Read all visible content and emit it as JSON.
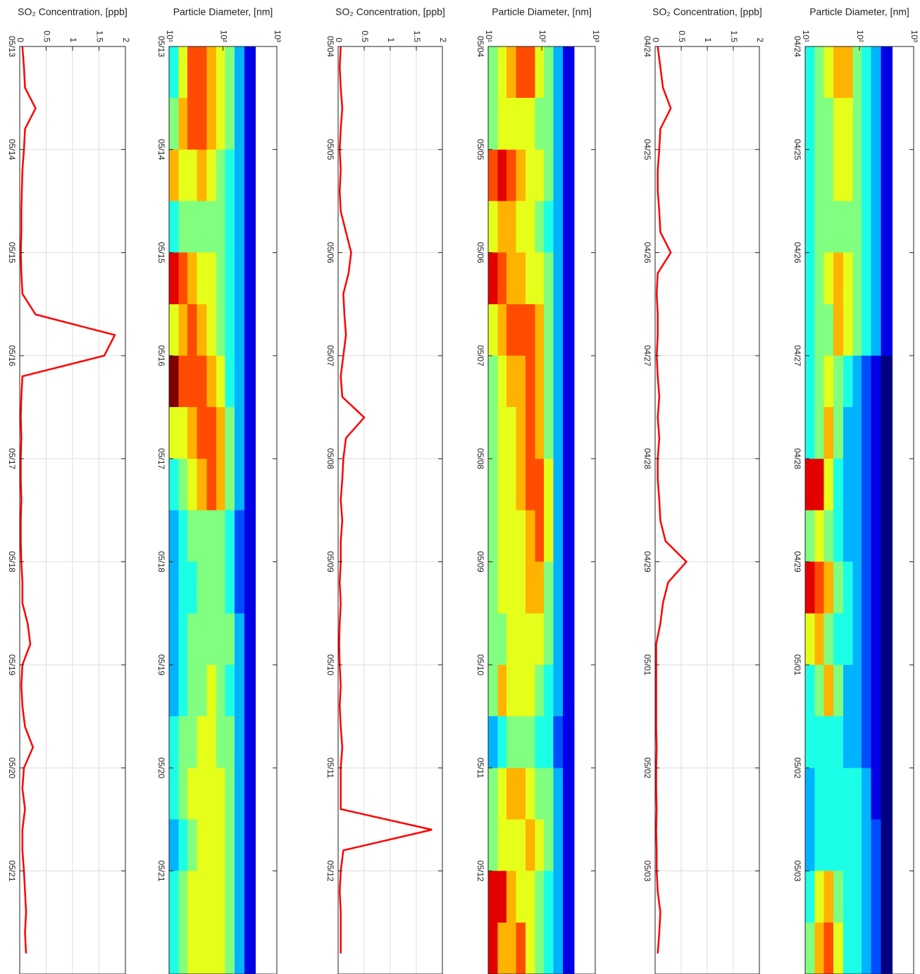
{
  "chart_data": [
    {
      "type": "line",
      "title": "SO₂ Concentration, [ppb]",
      "color": "#ff0000",
      "grid": true,
      "xlim": [
        0,
        9
      ],
      "xticks": [
        {
          "value": 0,
          "label": "05/13"
        },
        {
          "value": 1,
          "label": "05/14"
        },
        {
          "value": 2,
          "label": "05/15"
        },
        {
          "value": 3,
          "label": "05/16"
        },
        {
          "value": 4,
          "label": "05/17"
        },
        {
          "value": 5,
          "label": "05/18"
        },
        {
          "value": 6,
          "label": "05/19"
        },
        {
          "value": 7,
          "label": "05/20"
        },
        {
          "value": 8,
          "label": "05/21"
        }
      ],
      "ylim": [
        0,
        2
      ],
      "yticks": [
        0,
        0.5,
        1,
        1.5,
        2
      ],
      "x": [
        0,
        0.2,
        0.4,
        0.6,
        0.8,
        1,
        1.2,
        1.4,
        1.6,
        1.8,
        2,
        2.2,
        2.4,
        2.6,
        2.8,
        3,
        3.2,
        3.4,
        3.6,
        3.8,
        4,
        4.2,
        4.4,
        4.6,
        4.8,
        5,
        5.2,
        5.4,
        5.6,
        5.8,
        6,
        6.2,
        6.4,
        6.6,
        6.8,
        7,
        7.2,
        7.4,
        7.6,
        7.8,
        8,
        8.2,
        8.4,
        8.6,
        8.8
      ],
      "values": [
        0.05,
        0.08,
        0.1,
        0.3,
        0.1,
        0.08,
        0.05,
        0.04,
        0.03,
        0.03,
        0.02,
        0.03,
        0.05,
        0.3,
        1.8,
        1.6,
        0.05,
        0.03,
        0.02,
        0.03,
        0.02,
        0.02,
        0.03,
        0.02,
        0.02,
        0.03,
        0.05,
        0.05,
        0.15,
        0.2,
        0.05,
        0.03,
        0.05,
        0.1,
        0.25,
        0.08,
        0.05,
        0.1,
        0.05,
        0.05,
        0.08,
        0.1,
        0.12,
        0.1,
        0.12
      ]
    },
    {
      "type": "heatmap",
      "title": "Particle Diameter, [nm]",
      "log": true,
      "zlim": [
        0,
        10
      ],
      "xlim": [
        0,
        9
      ],
      "xticks": [
        0,
        1,
        2,
        3,
        4,
        5,
        6,
        7,
        8
      ],
      "ylim": [
        10,
        1000
      ],
      "yticks": [
        {
          "value": 10,
          "label": "10¹"
        },
        {
          "value": 100,
          "label": "10²"
        },
        {
          "value": 1000,
          "label": "10³"
        }
      ],
      "x": [
        0,
        0.5,
        1,
        1.5,
        2,
        2.5,
        3,
        3.5,
        4,
        4.5,
        5,
        5.5,
        6,
        6.5,
        7,
        7.5,
        8,
        8.5,
        9
      ],
      "bins": [
        10,
        15,
        22,
        33,
        50,
        75,
        110,
        165,
        250,
        400
      ],
      "z": [
        [
          4,
          6,
          8,
          8,
          7,
          6,
          5,
          3,
          1
        ],
        [
          5,
          7,
          8,
          8,
          7,
          6,
          5,
          3,
          1
        ],
        [
          7,
          6,
          6,
          7,
          6,
          5,
          4,
          3,
          1
        ],
        [
          4,
          5,
          5,
          5,
          5,
          5,
          4,
          3,
          1
        ],
        [
          9,
          8,
          7,
          6,
          6,
          5,
          4,
          3,
          1
        ],
        [
          6,
          7,
          8,
          7,
          6,
          5,
          4,
          3,
          1
        ],
        [
          10,
          8,
          8,
          8,
          7,
          6,
          4,
          3,
          1
        ],
        [
          6,
          6,
          7,
          8,
          8,
          7,
          5,
          3,
          1
        ],
        [
          4,
          5,
          6,
          7,
          8,
          7,
          5,
          3,
          1
        ],
        [
          3,
          4,
          5,
          5,
          5,
          5,
          4,
          2,
          1
        ],
        [
          3,
          4,
          4,
          5,
          5,
          5,
          4,
          2,
          1
        ],
        [
          3,
          4,
          5,
          5,
          5,
          5,
          5,
          3,
          1
        ],
        [
          3,
          4,
          5,
          5,
          6,
          5,
          4,
          3,
          1
        ],
        [
          4,
          5,
          5,
          6,
          6,
          5,
          5,
          3,
          1
        ],
        [
          4,
          5,
          6,
          6,
          6,
          6,
          5,
          3,
          1
        ],
        [
          3,
          4,
          5,
          6,
          6,
          6,
          5,
          3,
          1
        ],
        [
          4,
          5,
          6,
          6,
          6,
          6,
          5,
          3,
          1
        ],
        [
          4,
          5,
          6,
          6,
          6,
          6,
          5,
          3,
          1
        ]
      ]
    },
    {
      "type": "line",
      "title": "SO₂ Concentration, [ppb]",
      "color": "#ff0000",
      "grid": true,
      "xlim": [
        0,
        9
      ],
      "xticks": [
        {
          "value": 0,
          "label": "05/04"
        },
        {
          "value": 1,
          "label": "05/05"
        },
        {
          "value": 2,
          "label": "05/06"
        },
        {
          "value": 3,
          "label": "05/07"
        },
        {
          "value": 4,
          "label": "05/08"
        },
        {
          "value": 5,
          "label": "05/09"
        },
        {
          "value": 6,
          "label": "05/10"
        },
        {
          "value": 7,
          "label": "05/11"
        },
        {
          "value": 8,
          "label": "05/12"
        }
      ],
      "ylim": [
        0,
        2
      ],
      "yticks": [
        0,
        0.5,
        1,
        1.5,
        2
      ],
      "x": [
        0,
        0.2,
        0.4,
        0.6,
        0.8,
        1,
        1.2,
        1.4,
        1.6,
        1.8,
        2,
        2.2,
        2.4,
        2.6,
        2.8,
        3,
        3.2,
        3.4,
        3.6,
        3.8,
        4,
        4.2,
        4.4,
        4.6,
        4.8,
        5,
        5.2,
        5.4,
        5.6,
        5.8,
        6,
        6.2,
        6.4,
        6.6,
        6.8,
        7,
        7.2,
        7.4,
        7.6,
        7.8,
        8,
        8.2,
        8.4,
        8.6,
        8.8
      ],
      "values": [
        0.05,
        0.03,
        0.05,
        0.08,
        0.05,
        0.03,
        0.05,
        0.03,
        0.05,
        0.15,
        0.25,
        0.2,
        0.1,
        0.12,
        0.15,
        0.1,
        0.05,
        0.08,
        0.5,
        0.15,
        0.1,
        0.08,
        0.05,
        0.08,
        0.05,
        0.05,
        0.03,
        0.05,
        0.03,
        0.02,
        0.03,
        0.05,
        0.03,
        0.05,
        0.08,
        0.05,
        0.05,
        0.05,
        1.8,
        0.1,
        0.05,
        0.03,
        0.05,
        0.05,
        0.05
      ]
    },
    {
      "type": "heatmap",
      "title": "Particle Diameter, [nm]",
      "log": true,
      "zlim": [
        0,
        10
      ],
      "xlim": [
        0,
        9
      ],
      "xticks": [
        0,
        1,
        2,
        3,
        4,
        5,
        6,
        7,
        8
      ],
      "ylim": [
        10,
        1000
      ],
      "yticks": [
        {
          "value": 10,
          "label": "10¹"
        },
        {
          "value": 100,
          "label": "10²"
        },
        {
          "value": 1000,
          "label": "10³"
        }
      ],
      "x": [
        0,
        0.5,
        1,
        1.5,
        2,
        2.5,
        3,
        3.5,
        4,
        4.5,
        5,
        5.5,
        6,
        6.5,
        7,
        7.5,
        8,
        8.5,
        9
      ],
      "bins": [
        10,
        15,
        22,
        33,
        50,
        75,
        110,
        165,
        250,
        400
      ],
      "z": [
        [
          5,
          6,
          7,
          8,
          8,
          6,
          5,
          3,
          1
        ],
        [
          5,
          6,
          6,
          6,
          6,
          5,
          5,
          3,
          1
        ],
        [
          8,
          9,
          8,
          7,
          6,
          6,
          5,
          3,
          1
        ],
        [
          6,
          7,
          7,
          6,
          6,
          5,
          4,
          3,
          1
        ],
        [
          9,
          8,
          7,
          7,
          6,
          6,
          5,
          3,
          1
        ],
        [
          6,
          7,
          8,
          8,
          8,
          7,
          5,
          3,
          1
        ],
        [
          5,
          6,
          7,
          7,
          8,
          7,
          5,
          3,
          1
        ],
        [
          5,
          6,
          6,
          7,
          8,
          7,
          5,
          3,
          1
        ],
        [
          5,
          6,
          6,
          7,
          8,
          8,
          6,
          3,
          1
        ],
        [
          5,
          6,
          6,
          6,
          7,
          8,
          6,
          3,
          1
        ],
        [
          5,
          6,
          6,
          6,
          7,
          7,
          5,
          3,
          1
        ],
        [
          5,
          5,
          6,
          6,
          6,
          6,
          5,
          3,
          1
        ],
        [
          5,
          7,
          6,
          6,
          6,
          5,
          4,
          3,
          1
        ],
        [
          3,
          4,
          5,
          5,
          5,
          4,
          4,
          2,
          1
        ],
        [
          5,
          6,
          7,
          7,
          6,
          5,
          5,
          3,
          1
        ],
        [
          5,
          6,
          6,
          6,
          7,
          6,
          5,
          3,
          1
        ],
        [
          9,
          9,
          7,
          6,
          6,
          5,
          4,
          3,
          1
        ],
        [
          9,
          7,
          7,
          8,
          6,
          5,
          4,
          3,
          1
        ]
      ]
    },
    {
      "type": "line",
      "title": "SO₂ Concentration, [ppb]",
      "color": "#ff0000",
      "grid": true,
      "xlim": [
        0,
        9
      ],
      "xticks": [
        {
          "value": 0,
          "label": "04/24"
        },
        {
          "value": 1,
          "label": "04/25"
        },
        {
          "value": 2,
          "label": "04/26"
        },
        {
          "value": 3,
          "label": "04/27"
        },
        {
          "value": 4,
          "label": "04/28"
        },
        {
          "value": 5,
          "label": "04/29"
        },
        {
          "value": 6,
          "label": "05/01"
        },
        {
          "value": 7,
          "label": "05/02"
        },
        {
          "value": 8,
          "label": "05/03"
        }
      ],
      "ylim": [
        0,
        2
      ],
      "yticks": [
        0,
        0.5,
        1,
        1.5,
        2
      ],
      "x": [
        0,
        0.2,
        0.4,
        0.6,
        0.8,
        1,
        1.2,
        1.4,
        1.6,
        1.8,
        2,
        2.2,
        2.4,
        2.6,
        2.8,
        3,
        3.2,
        3.4,
        3.6,
        3.8,
        4,
        4.2,
        4.4,
        4.6,
        4.8,
        5,
        5.2,
        5.4,
        5.6,
        5.8,
        6,
        6.2,
        6.4,
        6.6,
        6.8,
        7,
        7.2,
        7.4,
        7.6,
        7.8,
        8,
        8.2,
        8.4,
        8.6,
        8.8
      ],
      "values": [
        0.05,
        0.1,
        0.15,
        0.3,
        0.1,
        0.08,
        0.05,
        0.05,
        0.08,
        0.1,
        0.3,
        0.05,
        0.03,
        0.05,
        0.05,
        0.03,
        0.05,
        0.08,
        0.05,
        0.08,
        0.05,
        0.05,
        0.08,
        0.1,
        0.2,
        0.6,
        0.25,
        0.15,
        0.1,
        0.02,
        0.02,
        0.02,
        0.02,
        0.02,
        0.03,
        0.02,
        0.02,
        0.03,
        0.02,
        0.03,
        0.03,
        0.05,
        0.1,
        0.08,
        0.05
      ]
    },
    {
      "type": "heatmap",
      "title": "Particle Diameter, [nm]",
      "log": true,
      "zlim": [
        0,
        10
      ],
      "xlim": [
        0,
        9
      ],
      "xticks": [
        0,
        1,
        2,
        3,
        4,
        5,
        6,
        7,
        8
      ],
      "ylim": [
        10,
        1000
      ],
      "yticks": [
        {
          "value": 10,
          "label": "10¹"
        },
        {
          "value": 100,
          "label": "10²"
        },
        {
          "value": 1000,
          "label": "10³"
        }
      ],
      "x": [
        0,
        0.5,
        1,
        1.5,
        2,
        2.5,
        3,
        3.5,
        4,
        4.5,
        5,
        5.5,
        6,
        6.5,
        7,
        7.5,
        8,
        8.5,
        9
      ],
      "bins": [
        10,
        15,
        22,
        33,
        50,
        75,
        110,
        165,
        250,
        400
      ],
      "z": [
        [
          4,
          5,
          6,
          7,
          7,
          5,
          4,
          3,
          1
        ],
        [
          4,
          5,
          5,
          6,
          6,
          5,
          4,
          3,
          1
        ],
        [
          4,
          5,
          5,
          6,
          6,
          5,
          4,
          3,
          1
        ],
        [
          4,
          5,
          5,
          5,
          5,
          5,
          4,
          3,
          1
        ],
        [
          4,
          5,
          6,
          7,
          6,
          5,
          4,
          3,
          1
        ],
        [
          4,
          5,
          5,
          7,
          6,
          5,
          4,
          3,
          1
        ],
        [
          4,
          5,
          6,
          5,
          4,
          3,
          2,
          1,
          0
        ],
        [
          4,
          5,
          7,
          5,
          3,
          3,
          2,
          1,
          0
        ],
        [
          9,
          9,
          6,
          4,
          3,
          3,
          2,
          1,
          0
        ],
        [
          5,
          6,
          5,
          4,
          3,
          3,
          2,
          1,
          0
        ],
        [
          9,
          8,
          7,
          5,
          4,
          3,
          2,
          1,
          0
        ],
        [
          6,
          7,
          5,
          4,
          4,
          3,
          2,
          1,
          0
        ],
        [
          4,
          5,
          7,
          5,
          3,
          3,
          2,
          1,
          0
        ],
        [
          4,
          4,
          4,
          4,
          3,
          3,
          2,
          1,
          0
        ],
        [
          3,
          4,
          4,
          4,
          4,
          4,
          3,
          1,
          0
        ],
        [
          3,
          4,
          4,
          4,
          4,
          4,
          3,
          2,
          0
        ],
        [
          4,
          6,
          7,
          5,
          4,
          4,
          3,
          2,
          0
        ],
        [
          5,
          7,
          8,
          6,
          4,
          4,
          3,
          2,
          0
        ]
      ]
    }
  ]
}
